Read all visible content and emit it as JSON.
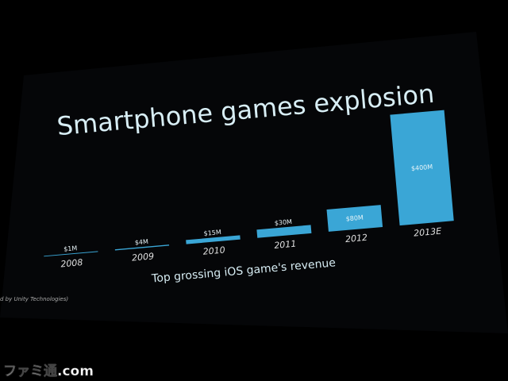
{
  "chart_data": {
    "type": "bar",
    "title": "Smartphone games explosion",
    "categories": [
      "2008",
      "2009",
      "2010",
      "2011",
      "2012",
      "2013E"
    ],
    "values": [
      1,
      4,
      15,
      30,
      80,
      400
    ],
    "value_labels": [
      "$1M",
      "$4M",
      "$15M",
      "$30M",
      "$80M",
      "$400M"
    ],
    "color": "#3aa6d6",
    "x_label": "Top grossing iOS game's revenue",
    "footnote": "d by Unity Technologies)",
    "watermark": "ファミ通.com"
  }
}
